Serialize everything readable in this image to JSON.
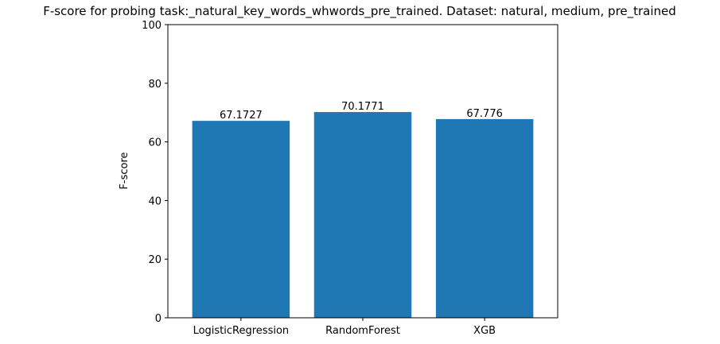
{
  "chart_data": {
    "type": "bar",
    "title": "F-score for probing task:_natural_key_words_whwords_pre_trained. Dataset: natural, medium, pre_trained",
    "xlabel": "",
    "ylabel": "F-score",
    "categories": [
      "LogisticRegression",
      "RandomForest",
      "XGB"
    ],
    "values": [
      67.1727,
      70.1771,
      67.776
    ],
    "data_labels": [
      "67.1727",
      "70.1771",
      "67.776"
    ],
    "ylim": [
      0,
      100
    ],
    "yticks": [
      0,
      20,
      40,
      60,
      80,
      100
    ],
    "grid": false,
    "legend": "none",
    "bar_color": "#1f77b4"
  }
}
